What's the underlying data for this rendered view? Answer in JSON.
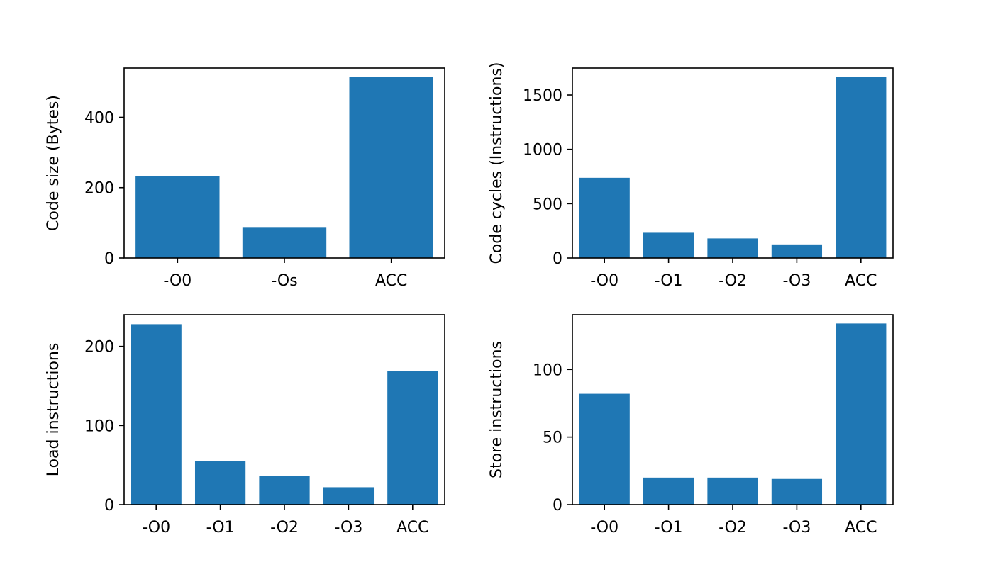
{
  "chart_data": [
    {
      "type": "bar",
      "categories": [
        "-O0",
        "-Os",
        "ACC"
      ],
      "values": [
        232,
        88,
        514
      ],
      "ylabel": "Code size (Bytes)",
      "xlabel": "",
      "title": "",
      "ylim": [
        0,
        540
      ],
      "yticks": [
        0,
        200,
        400
      ],
      "color": "#1f77b4",
      "grid": false
    },
    {
      "type": "bar",
      "categories": [
        "-O0",
        "-O1",
        "-O2",
        "-O3",
        "ACC"
      ],
      "values": [
        738,
        232,
        180,
        125,
        1665
      ],
      "ylabel": "Code cycles (Instructions)",
      "xlabel": "",
      "title": "",
      "ylim": [
        0,
        1748
      ],
      "yticks": [
        0,
        500,
        1000,
        1500
      ],
      "color": "#1f77b4",
      "grid": false
    },
    {
      "type": "bar",
      "categories": [
        "-O0",
        "-O1",
        "-O2",
        "-O3",
        "ACC"
      ],
      "values": [
        228,
        55,
        36,
        22,
        169
      ],
      "ylabel": "Load instructions",
      "xlabel": "",
      "title": "",
      "ylim": [
        0,
        240
      ],
      "yticks": [
        0,
        100,
        200
      ],
      "color": "#1f77b4",
      "grid": false
    },
    {
      "type": "bar",
      "categories": [
        "-O0",
        "-O1",
        "-O2",
        "-O3",
        "ACC"
      ],
      "values": [
        82,
        20,
        20,
        19,
        134
      ],
      "ylabel": "Store instructions",
      "xlabel": "",
      "title": "",
      "ylim": [
        0,
        140.5
      ],
      "yticks": [
        0,
        50,
        100
      ],
      "color": "#1f77b4",
      "grid": false
    }
  ]
}
